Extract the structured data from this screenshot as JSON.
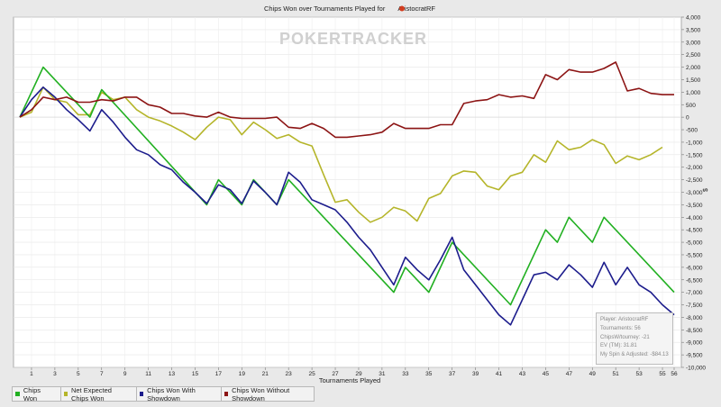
{
  "chart_data": {
    "type": "line",
    "title": "Chips Won over Tournaments Played for",
    "player_name": "AristocratRF",
    "xlabel": "Tournaments Played",
    "ylabel": "$",
    "xlim": [
      0,
      56
    ],
    "ylim": [
      -10000,
      4000
    ],
    "x_ticks": [
      1,
      3,
      5,
      7,
      9,
      11,
      13,
      15,
      17,
      19,
      21,
      23,
      25,
      27,
      29,
      31,
      33,
      35,
      37,
      39,
      41,
      43,
      45,
      47,
      49,
      51,
      53,
      55,
      56
    ],
    "y_ticks": [
      4000,
      3500,
      3000,
      2500,
      2000,
      1500,
      1000,
      500,
      0,
      -500,
      -1000,
      -1500,
      -2000,
      -2500,
      -3000,
      -3500,
      -4000,
      -4500,
      -5000,
      -5500,
      -6000,
      -6500,
      -7000,
      -7500,
      -8000,
      -8500,
      -9000,
      -9500,
      -10000
    ],
    "y_tick_labels": [
      "4,000",
      "3,500",
      "3,000",
      "2,500",
      "2,000",
      "1,500",
      "1,000",
      "500",
      "0",
      "-500",
      "-1,000",
      "-1,500",
      "-2,000",
      "-2,500",
      "-3,000",
      "-3,500",
      "-4,000",
      "-4,500",
      "-5,000",
      "-5,500",
      "-6,000",
      "-6,500",
      "-7,000",
      "-7,500",
      "-8,000",
      "-8,500",
      "-9,000",
      "-9,500",
      "-10,000"
    ],
    "grid": true,
    "legend_position": "bottom-left",
    "series": [
      {
        "name": "Chips Won",
        "color": "#22b022",
        "points": [
          [
            0,
            0
          ],
          [
            2,
            2000
          ],
          [
            6,
            0
          ],
          [
            7,
            1100
          ],
          [
            16,
            -3500
          ],
          [
            17,
            -2500
          ],
          [
            19,
            -3500
          ],
          [
            20,
            -2500
          ],
          [
            22,
            -3500
          ],
          [
            23,
            -2500
          ],
          [
            32,
            -7000
          ],
          [
            33,
            -6000
          ],
          [
            35,
            -7000
          ],
          [
            37,
            -5000
          ],
          [
            42,
            -7500
          ],
          [
            45,
            -4500
          ],
          [
            46,
            -5000
          ],
          [
            47,
            -4000
          ],
          [
            49,
            -5000
          ],
          [
            50,
            -4000
          ],
          [
            56,
            -7000
          ]
        ]
      },
      {
        "name": "Net Expected Chips Won",
        "color": "#b5b52a",
        "points": [
          [
            0,
            0
          ],
          [
            1,
            200
          ],
          [
            2,
            1200
          ],
          [
            3,
            700
          ],
          [
            4,
            600
          ],
          [
            5,
            100
          ],
          [
            6,
            100
          ],
          [
            7,
            1000
          ],
          [
            8,
            700
          ],
          [
            9,
            800
          ],
          [
            10,
            300
          ],
          [
            11,
            0
          ],
          [
            12,
            -150
          ],
          [
            13,
            -350
          ],
          [
            14,
            -600
          ],
          [
            15,
            -900
          ],
          [
            16,
            -400
          ],
          [
            17,
            0
          ],
          [
            18,
            -100
          ],
          [
            19,
            -700
          ],
          [
            20,
            -200
          ],
          [
            21,
            -500
          ],
          [
            22,
            -850
          ],
          [
            23,
            -700
          ],
          [
            24,
            -1000
          ],
          [
            25,
            -1150
          ],
          [
            26,
            -2300
          ],
          [
            27,
            -3400
          ],
          [
            28,
            -3300
          ],
          [
            29,
            -3800
          ],
          [
            30,
            -4200
          ],
          [
            31,
            -4000
          ],
          [
            32,
            -3600
          ],
          [
            33,
            -3750
          ],
          [
            34,
            -4150
          ],
          [
            35,
            -3250
          ],
          [
            36,
            -3050
          ],
          [
            37,
            -2350
          ],
          [
            38,
            -2150
          ],
          [
            39,
            -2200
          ],
          [
            40,
            -2750
          ],
          [
            41,
            -2900
          ],
          [
            42,
            -2350
          ],
          [
            43,
            -2200
          ],
          [
            44,
            -1500
          ],
          [
            45,
            -1800
          ],
          [
            46,
            -950
          ],
          [
            47,
            -1300
          ],
          [
            48,
            -1200
          ],
          [
            49,
            -900
          ],
          [
            50,
            -1100
          ],
          [
            51,
            -1850
          ],
          [
            52,
            -1550
          ],
          [
            53,
            -1700
          ],
          [
            54,
            -1500
          ],
          [
            55,
            -1200
          ]
        ]
      },
      {
        "name": "Chips Won With Showdown",
        "color": "#1c1c8c",
        "points": [
          [
            0,
            0
          ],
          [
            1,
            700
          ],
          [
            2,
            1200
          ],
          [
            3,
            800
          ],
          [
            4,
            300
          ],
          [
            5,
            -100
          ],
          [
            6,
            -550
          ],
          [
            7,
            300
          ],
          [
            8,
            -200
          ],
          [
            9,
            -800
          ],
          [
            10,
            -1300
          ],
          [
            11,
            -1500
          ],
          [
            12,
            -1900
          ],
          [
            13,
            -2100
          ],
          [
            14,
            -2600
          ],
          [
            15,
            -3000
          ],
          [
            16,
            -3450
          ],
          [
            17,
            -2700
          ],
          [
            18,
            -2900
          ],
          [
            19,
            -3450
          ],
          [
            20,
            -2550
          ],
          [
            21,
            -3000
          ],
          [
            22,
            -3500
          ],
          [
            23,
            -2200
          ],
          [
            24,
            -2600
          ],
          [
            25,
            -3300
          ],
          [
            26,
            -3500
          ],
          [
            27,
            -3700
          ],
          [
            28,
            -4200
          ],
          [
            29,
            -4800
          ],
          [
            30,
            -5300
          ],
          [
            31,
            -6000
          ],
          [
            32,
            -6700
          ],
          [
            33,
            -5600
          ],
          [
            34,
            -6100
          ],
          [
            35,
            -6500
          ],
          [
            36,
            -5700
          ],
          [
            37,
            -4800
          ],
          [
            38,
            -6100
          ],
          [
            39,
            -6700
          ],
          [
            40,
            -7300
          ],
          [
            41,
            -7900
          ],
          [
            42,
            -8300
          ],
          [
            43,
            -7300
          ],
          [
            44,
            -6300
          ],
          [
            45,
            -6200
          ],
          [
            46,
            -6500
          ],
          [
            47,
            -5900
          ],
          [
            48,
            -6300
          ],
          [
            49,
            -6800
          ],
          [
            50,
            -5800
          ],
          [
            51,
            -6700
          ],
          [
            52,
            -6000
          ],
          [
            53,
            -6700
          ],
          [
            54,
            -7000
          ],
          [
            55,
            -7500
          ],
          [
            56,
            -7900
          ]
        ]
      },
      {
        "name": "Chips Won Without Showdown",
        "color": "#8c1414",
        "points": [
          [
            0,
            0
          ],
          [
            1,
            300
          ],
          [
            2,
            800
          ],
          [
            3,
            700
          ],
          [
            4,
            800
          ],
          [
            5,
            600
          ],
          [
            6,
            600
          ],
          [
            7,
            700
          ],
          [
            8,
            650
          ],
          [
            9,
            800
          ],
          [
            10,
            800
          ],
          [
            11,
            500
          ],
          [
            12,
            400
          ],
          [
            13,
            150
          ],
          [
            14,
            150
          ],
          [
            15,
            50
          ],
          [
            16,
            0
          ],
          [
            17,
            200
          ],
          [
            18,
            0
          ],
          [
            19,
            -50
          ],
          [
            20,
            -50
          ],
          [
            21,
            -50
          ],
          [
            22,
            0
          ],
          [
            23,
            -400
          ],
          [
            24,
            -450
          ],
          [
            25,
            -250
          ],
          [
            26,
            -450
          ],
          [
            27,
            -800
          ],
          [
            28,
            -800
          ],
          [
            29,
            -750
          ],
          [
            30,
            -700
          ],
          [
            31,
            -600
          ],
          [
            32,
            -250
          ],
          [
            33,
            -450
          ],
          [
            34,
            -450
          ],
          [
            35,
            -450
          ],
          [
            36,
            -300
          ],
          [
            37,
            -300
          ],
          [
            38,
            550
          ],
          [
            39,
            650
          ],
          [
            40,
            700
          ],
          [
            41,
            900
          ],
          [
            42,
            800
          ],
          [
            43,
            850
          ],
          [
            44,
            750
          ],
          [
            45,
            1700
          ],
          [
            46,
            1500
          ],
          [
            47,
            1900
          ],
          [
            48,
            1800
          ],
          [
            49,
            1800
          ],
          [
            50,
            1950
          ],
          [
            51,
            2200
          ],
          [
            52,
            1050
          ],
          [
            53,
            1150
          ],
          [
            54,
            950
          ],
          [
            55,
            900
          ],
          [
            56,
            900
          ]
        ]
      }
    ]
  },
  "info": {
    "player": "Player: AristocratRF",
    "tournaments": "Tournaments: 56",
    "chips_per_tourney": "ChipsW/tourney: -21",
    "ev": "EV (TM): 31.81",
    "spin": "My Spin & Adjusted: -$84.13"
  },
  "watermark": "POKERTRACKER"
}
